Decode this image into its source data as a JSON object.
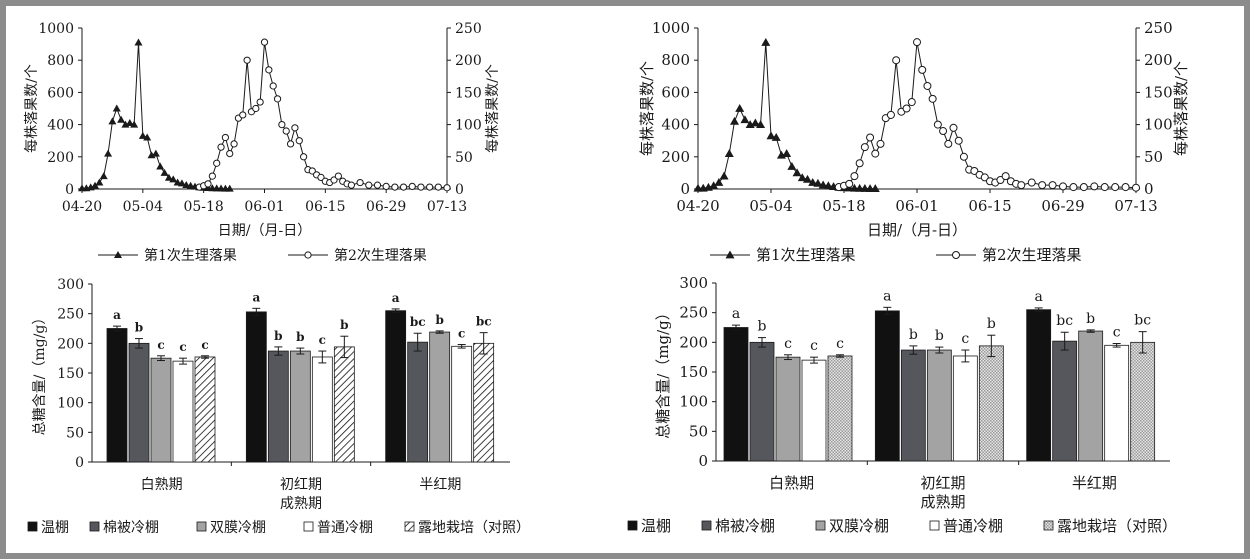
{
  "colors": {
    "frame_border": "#8c8c8c",
    "line": "#1a1a1a",
    "bar_wenpeng": "#111111",
    "bar_mianbei": "#55575c",
    "bar_shuangmo": "#a3a3a3",
    "bar_putong": "#ffffff",
    "bar_ludi_left": "hatch",
    "bar_ludi_right": "checker"
  },
  "chart_data": [
    {
      "id": "left-top",
      "type": "line",
      "xlabel": "日期/（月-日）",
      "ylabel": "每株落果数/个",
      "y2label": "每株落果数/个",
      "xticks": [
        "04-20",
        "05-04",
        "05-18",
        "06-01",
        "06-15",
        "06-29",
        "07-13"
      ],
      "ylim": [
        0,
        1000
      ],
      "yticks": [
        "0",
        "200",
        "400",
        "600",
        "800",
        "1000"
      ],
      "y2lim": [
        0,
        250
      ],
      "y2ticks": [
        "0",
        "50",
        "100",
        "150",
        "200",
        "250"
      ],
      "series": [
        {
          "name": "第1次生理落果",
          "axis": "left",
          "marker": "triangle",
          "x": [
            "04-20",
            "04-21",
            "04-22",
            "04-23",
            "04-24",
            "04-25",
            "04-26",
            "04-27",
            "04-28",
            "04-29",
            "04-30",
            "05-01",
            "05-02",
            "05-03",
            "05-04",
            "05-05",
            "05-06",
            "05-07",
            "05-08",
            "05-09",
            "05-10",
            "05-11",
            "05-12",
            "05-13",
            "05-14",
            "05-15",
            "05-16",
            "05-17",
            "05-18",
            "05-19",
            "05-20",
            "05-21",
            "05-22",
            "05-23",
            "05-24"
          ],
          "y": [
            5,
            5,
            10,
            20,
            40,
            80,
            220,
            420,
            500,
            430,
            400,
            410,
            400,
            910,
            330,
            320,
            210,
            220,
            140,
            100,
            70,
            60,
            40,
            35,
            25,
            20,
            15,
            10,
            8,
            6,
            5,
            4,
            3,
            2,
            2
          ]
        },
        {
          "name": "第2次生理落果",
          "axis": "right",
          "marker": "circle",
          "x": [
            "05-17",
            "05-18",
            "05-19",
            "05-20",
            "05-21",
            "05-22",
            "05-23",
            "05-24",
            "05-25",
            "05-26",
            "05-27",
            "05-28",
            "05-29",
            "05-30",
            "05-31",
            "06-01",
            "06-02",
            "06-03",
            "06-04",
            "06-05",
            "06-06",
            "06-07",
            "06-08",
            "06-09",
            "06-10",
            "06-11",
            "06-12",
            "06-13",
            "06-14",
            "06-15",
            "06-16",
            "06-17",
            "06-18",
            "06-19",
            "06-20",
            "06-21",
            "06-23",
            "06-25",
            "06-27",
            "06-29",
            "07-01",
            "07-03",
            "07-05",
            "07-07",
            "07-09",
            "07-11",
            "07-13"
          ],
          "y": [
            3,
            5,
            8,
            20,
            40,
            65,
            80,
            55,
            70,
            110,
            115,
            200,
            120,
            125,
            135,
            228,
            185,
            160,
            140,
            100,
            90,
            70,
            95,
            75,
            50,
            30,
            28,
            22,
            18,
            12,
            10,
            14,
            20,
            12,
            8,
            6,
            10,
            6,
            6,
            4,
            3,
            3,
            4,
            3,
            3,
            3,
            2
          ]
        }
      ],
      "legend": [
        "第1次生理落果",
        "第2次生理落果"
      ],
      "legend_position": "bottom"
    },
    {
      "id": "left-bottom",
      "type": "bar",
      "xlabel": "成熟期",
      "ylabel": "总糖含量/（mg/g）",
      "ylim": [
        0,
        300
      ],
      "yticks": [
        "0",
        "50",
        "100",
        "150",
        "200",
        "250",
        "300"
      ],
      "categories": [
        "白熟期",
        "初红期",
        "半红期"
      ],
      "series": [
        {
          "name": "温棚",
          "values": [
            225,
            253,
            255
          ],
          "errors": [
            4,
            6,
            3
          ],
          "letters": [
            "a",
            "a",
            "a"
          ]
        },
        {
          "name": "棉被冷棚",
          "values": [
            200,
            187,
            202
          ],
          "errors": [
            8,
            7,
            15
          ],
          "letters": [
            "b",
            "b",
            "bc"
          ]
        },
        {
          "name": "双膜冷棚",
          "values": [
            175,
            187,
            219
          ],
          "errors": [
            4,
            5,
            2
          ],
          "letters": [
            "c",
            "b",
            "b"
          ]
        },
        {
          "name": "普通冷棚",
          "values": [
            170,
            177,
            195
          ],
          "errors": [
            5,
            10,
            3
          ],
          "letters": [
            "c",
            "c",
            "c"
          ]
        },
        {
          "name": "露地栽培（对照）",
          "values": [
            177,
            194,
            200
          ],
          "errors": [
            2,
            18,
            18
          ],
          "letters": [
            "c",
            "b",
            "bc"
          ]
        }
      ],
      "legend_position": "bottom"
    },
    {
      "id": "right-top",
      "type": "line",
      "xlabel": "日期/（月-日）",
      "ylabel": "每株落果数/个",
      "y2label": "每株落果数/个",
      "xticks": [
        "04-20",
        "05-04",
        "05-18",
        "06-01",
        "06-15",
        "06-29",
        "07-13"
      ],
      "ylim": [
        0,
        1000
      ],
      "yticks": [
        "0",
        "200",
        "400",
        "600",
        "800",
        "1000"
      ],
      "y2lim": [
        0,
        250
      ],
      "y2ticks": [
        "0",
        "50",
        "100",
        "150",
        "200",
        "250"
      ],
      "legend": [
        "第1次生理落果",
        "第2次生理落果"
      ],
      "legend_position": "bottom"
    },
    {
      "id": "right-bottom",
      "type": "bar",
      "xlabel": "成熟期",
      "ylabel": "总糖含量/（mg/g）",
      "ylim": [
        0,
        300
      ],
      "yticks": [
        "0",
        "50",
        "100",
        "150",
        "200",
        "250",
        "300"
      ],
      "categories": [
        "白熟期",
        "初红期",
        "半红期"
      ],
      "legend_position": "bottom"
    }
  ]
}
